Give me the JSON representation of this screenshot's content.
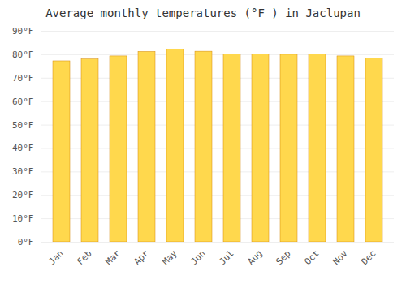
{
  "chart_data": {
    "type": "bar",
    "title": "Average monthly temperatures (°F ) in Jaclupan",
    "categories": [
      "Jan",
      "Feb",
      "Mar",
      "Apr",
      "May",
      "Jun",
      "Jul",
      "Aug",
      "Sep",
      "Oct",
      "Nov",
      "Dec"
    ],
    "values": [
      77.2,
      78.0,
      79.3,
      81.2,
      82.3,
      81.3,
      80.2,
      80.1,
      80.0,
      80.1,
      79.3,
      78.4
    ],
    "color": "#FFD84D",
    "ylim": [
      0,
      90
    ],
    "yticks": [
      {
        "value": 0,
        "label": "0°F"
      },
      {
        "value": 10,
        "label": "10°F"
      },
      {
        "value": 20,
        "label": "20°F"
      },
      {
        "value": 30,
        "label": "30°F"
      },
      {
        "value": 40,
        "label": "40°F"
      },
      {
        "value": 50,
        "label": "50°F"
      },
      {
        "value": 60,
        "label": "60°F"
      },
      {
        "value": 70,
        "label": "70°F"
      },
      {
        "value": 80,
        "label": "80°F"
      },
      {
        "value": 90,
        "label": "90°F"
      }
    ],
    "grid": true
  }
}
